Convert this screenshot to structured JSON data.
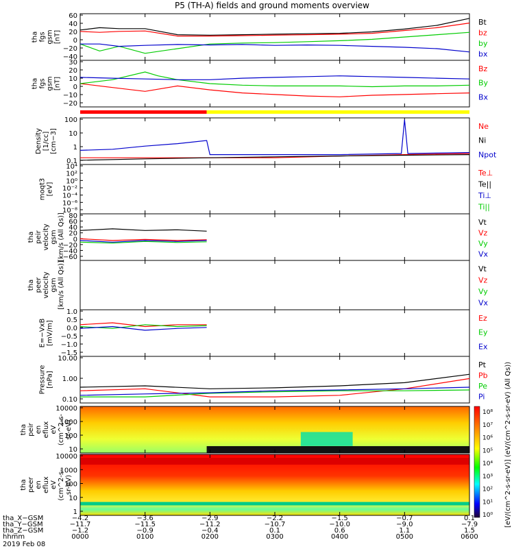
{
  "title": "P5 (TH-A) fields and ground moments overview",
  "chart_data": [
    {
      "type": "line",
      "ylabel": [
        "tha",
        "fgs",
        "gsm",
        "[nT]"
      ],
      "yticks": [
        "60",
        "40",
        "20",
        "0",
        "−20",
        "−40"
      ],
      "ylim": [
        -40,
        60
      ],
      "legend": [
        "Bt",
        "bz",
        "by",
        "bx"
      ],
      "series": [
        {
          "name": "Bt",
          "color": "#000000",
          "x": [
            0,
            0.3,
            0.6,
            1.0,
            1.5,
            2.0,
            2.5,
            3.0,
            3.5,
            4.0,
            4.5,
            5.0,
            5.5,
            6.0
          ],
          "y": [
            25,
            30,
            28,
            28,
            15,
            14,
            15,
            16,
            17,
            18,
            21,
            27,
            35,
            50
          ]
        },
        {
          "name": "bz",
          "color": "#ff0000",
          "x": [
            0,
            0.3,
            0.6,
            1.0,
            1.5,
            2.0,
            2.5,
            3.0,
            3.5,
            4.0,
            4.5,
            5.0,
            5.5,
            6.0
          ],
          "y": [
            22,
            20,
            22,
            23,
            12,
            12,
            13,
            14,
            15,
            16,
            18,
            24,
            30,
            40
          ]
        },
        {
          "name": "by",
          "color": "#00cc00",
          "x": [
            0,
            0.3,
            0.6,
            1.0,
            1.5,
            2.0,
            2.5,
            3.0,
            3.5,
            4.0,
            4.5,
            5.0,
            5.5,
            6.0
          ],
          "y": [
            -5,
            -20,
            -10,
            -25,
            -15,
            -5,
            -3,
            -2,
            0,
            2,
            5,
            10,
            15,
            20
          ]
        },
        {
          "name": "bx",
          "color": "#0000cc",
          "x": [
            0,
            0.3,
            0.6,
            1.0,
            1.5,
            2.0,
            2.5,
            3.0,
            3.5,
            4.0,
            4.5,
            5.0,
            5.5,
            6.0
          ],
          "y": [
            -5,
            -5,
            -10,
            -8,
            -6,
            -7,
            -6,
            -8,
            -7,
            -8,
            -10,
            -12,
            -15,
            -22
          ]
        }
      ]
    },
    {
      "type": "line",
      "ylabel": [
        "tha",
        "fgs",
        "gsm",
        "[nT]"
      ],
      "yticks": [
        "30",
        "20",
        "10",
        "0",
        "−10",
        "−20"
      ],
      "ylim": [
        -30,
        30
      ],
      "legend": [
        "Bz",
        "By",
        "Bx"
      ],
      "series": [
        {
          "name": "Bz",
          "color": "#ff0000",
          "x": [
            0,
            0.5,
            1.0,
            1.5,
            2.0,
            2.5,
            3.0,
            3.5,
            4.0,
            4.5,
            5.0,
            5.5,
            6.0
          ],
          "y": [
            0,
            -5,
            -10,
            -3,
            -8,
            -12,
            -14,
            -16,
            -17,
            -15,
            -14,
            -13,
            -12
          ]
        },
        {
          "name": "By",
          "color": "#00cc00",
          "x": [
            0,
            0.5,
            1.0,
            1.2,
            1.5,
            2.0,
            2.5,
            3.0,
            3.5,
            4.0,
            4.5,
            5.0,
            5.5,
            6.0
          ],
          "y": [
            0,
            5,
            15,
            10,
            5,
            0,
            -2,
            -3,
            -3,
            -3,
            -4,
            -3,
            -3,
            -2
          ]
        },
        {
          "name": "Bx",
          "color": "#0000cc",
          "x": [
            0,
            0.5,
            1.0,
            1.5,
            2.0,
            2.5,
            3.0,
            3.5,
            4.0,
            4.5,
            5.0,
            5.5,
            6.0
          ],
          "y": [
            8,
            7,
            6,
            5,
            5,
            7,
            8,
            9,
            10,
            9,
            8,
            7,
            6
          ]
        }
      ],
      "status_bar": [
        {
          "from": 0,
          "to": 1.95,
          "color": "#ff0000"
        },
        {
          "from": 1.95,
          "to": 6.0,
          "color": "#ffff00"
        }
      ]
    },
    {
      "type": "line",
      "ylabel": [
        "Density",
        "[1/cc]",
        "[cm−3]"
      ],
      "yticks": [
        "100",
        "10",
        "1",
        "0.1"
      ],
      "yscale": "log",
      "ylim": [
        0.1,
        200
      ],
      "legend": [
        "Ne",
        "Ni",
        "Npot"
      ],
      "series": [
        {
          "name": "Ne",
          "color": "#ff0000",
          "x": [
            0,
            1,
            2,
            3,
            4,
            5,
            6
          ],
          "y": [
            0.3,
            0.3,
            0.3,
            0.3,
            0.4,
            0.5,
            0.6
          ]
        },
        {
          "name": "Ni",
          "color": "#000000",
          "x": [
            0,
            1,
            2,
            3,
            4,
            5,
            6
          ],
          "y": [
            0.2,
            0.25,
            0.3,
            0.35,
            0.4,
            0.45,
            0.5
          ]
        },
        {
          "name": "Npot",
          "color": "#0000cc",
          "x": [
            0,
            0.5,
            1.0,
            1.5,
            1.95,
            2.0,
            3.0,
            4.0,
            4.95,
            5.0,
            5.05,
            6.0
          ],
          "y": [
            1,
            1.2,
            2,
            3,
            5,
            0.5,
            0.5,
            0.5,
            0.6,
            150,
            0.6,
            0.7
          ]
        }
      ]
    },
    {
      "type": "line",
      "ylabel": [
        "moqt3",
        "[eV]"
      ],
      "yticks": [
        "10⁴",
        "10²",
        "10⁰",
        "10⁻²",
        "10⁻⁴",
        "10⁻⁶",
        "10⁻⁸"
      ],
      "yscale": "log",
      "legend": [
        "Te⊥",
        "Te||",
        "Ti⊥",
        "Ti||"
      ],
      "series": []
    },
    {
      "type": "line",
      "ylabel": [
        "tha",
        "peir",
        "velocity",
        "gsm",
        "[km/s (All Qs)]"
      ],
      "yticks": [
        "80",
        "60",
        "40",
        "20",
        "0",
        "−20",
        "−40",
        "−60"
      ],
      "ylim": [
        -60,
        80
      ],
      "legend": [
        "Vt",
        "Vz",
        "Vy",
        "Vx"
      ],
      "series": [
        {
          "name": "Vt",
          "color": "#000000",
          "x": [
            0,
            0.5,
            1.0,
            1.5,
            1.95
          ],
          "y": [
            30,
            35,
            30,
            32,
            28
          ]
        },
        {
          "name": "Vz",
          "color": "#ff0000",
          "x": [
            0,
            0.5,
            1.0,
            1.5,
            1.95
          ],
          "y": [
            5,
            0,
            3,
            0,
            2
          ]
        },
        {
          "name": "Vy",
          "color": "#00cc00",
          "x": [
            0,
            0.5,
            1.0,
            1.5,
            1.95
          ],
          "y": [
            -5,
            -8,
            -3,
            -6,
            -4
          ]
        },
        {
          "name": "Vx",
          "color": "#0000cc",
          "x": [
            0,
            0.5,
            1.0,
            1.5,
            1.95
          ],
          "y": [
            0,
            -5,
            0,
            -3,
            0
          ]
        }
      ]
    },
    {
      "type": "line",
      "ylabel": [
        "tha",
        "peer",
        "velocity",
        "gsm",
        "[km/s (All Qs)]"
      ],
      "yticks": [],
      "legend": [
        "Vt",
        "Vz",
        "Vy",
        "Vx"
      ],
      "series": []
    },
    {
      "type": "line",
      "ylabel": [
        "E=−VxB",
        "[mV/m]"
      ],
      "yticks": [
        "1.0",
        "0.5",
        "0.0",
        "−0.5",
        "−1.0",
        "−1.5"
      ],
      "ylim": [
        -1.5,
        1.0
      ],
      "legend": [
        "Ez",
        "Ey",
        "Ex"
      ],
      "series": [
        {
          "name": "Ez",
          "color": "#ff0000",
          "x": [
            0,
            0.5,
            1.0,
            1.5,
            1.95
          ],
          "y": [
            0.2,
            0.3,
            0.1,
            0.2,
            0.2
          ]
        },
        {
          "name": "Ey",
          "color": "#00cc00",
          "x": [
            0,
            0.5,
            1.0,
            1.5,
            1.95
          ],
          "y": [
            0.1,
            0.0,
            0.2,
            0.1,
            0.15
          ]
        },
        {
          "name": "Ex",
          "color": "#0000cc",
          "x": [
            0,
            0.5,
            1.0,
            1.5,
            1.95
          ],
          "y": [
            0.0,
            0.1,
            -0.1,
            0.0,
            0.05
          ]
        }
      ]
    },
    {
      "type": "line",
      "ylabel": [
        "Pressure",
        "[nPa]"
      ],
      "yticks": [
        "10.00",
        "1.00",
        "0.10"
      ],
      "yscale": "log",
      "ylim": [
        0.05,
        10
      ],
      "legend": [
        "Pt",
        "Pb",
        "Pe",
        "Pi"
      ],
      "series": [
        {
          "name": "Pt",
          "color": "#000000",
          "x": [
            0,
            1,
            2,
            3,
            4,
            5,
            6
          ],
          "y": [
            0.3,
            0.35,
            0.25,
            0.28,
            0.35,
            0.5,
            1.3
          ]
        },
        {
          "name": "Pb",
          "color": "#ff0000",
          "x": [
            0,
            1,
            2,
            3,
            4,
            5,
            6
          ],
          "y": [
            0.2,
            0.25,
            0.1,
            0.1,
            0.12,
            0.25,
            0.8
          ]
        },
        {
          "name": "Pe",
          "color": "#00cc00",
          "x": [
            0,
            1,
            2,
            3,
            4,
            5,
            6
          ],
          "y": [
            0.1,
            0.1,
            0.15,
            0.18,
            0.2,
            0.2,
            0.22
          ]
        },
        {
          "name": "Pi",
          "color": "#0000cc",
          "x": [
            0,
            1,
            2,
            3,
            4,
            5,
            6
          ],
          "y": [
            0.12,
            0.14,
            0.16,
            0.2,
            0.22,
            0.25,
            0.3
          ]
        }
      ]
    },
    {
      "type": "heatmap",
      "ylabel": [
        "tha",
        "peir",
        "en",
        "eflux",
        "eV",
        "(cm^2-s-",
        "sr-eV)"
      ],
      "yticks": [
        "10000",
        "1000",
        "100",
        "10"
      ],
      "yscale": "log"
    },
    {
      "type": "heatmap",
      "ylabel": [
        "tha",
        "peer",
        "en",
        "eflux",
        "eV",
        "(cm^2-s-",
        "sr-eV)"
      ],
      "yticks": [
        "10000",
        "1000",
        "100",
        "10",
        "1"
      ],
      "yscale": "log"
    }
  ],
  "colorbar": {
    "ticks": [
      "10⁸",
      "10⁷",
      "10⁶",
      "10⁵",
      "10⁴",
      "10³",
      "10²",
      "10¹",
      "10⁰"
    ],
    "label": "[eV/(cm^2-s-sr-eV)] (eV/(cm^2-s-sr-eV) (All Qs))"
  },
  "xaxis": {
    "range": [
      0,
      6
    ],
    "rows": [
      {
        "label": "tha_X−GSM",
        "values": [
          "−4.2",
          "−3.6",
          "−2.9",
          "−2.2",
          "−1.5",
          "−0.7",
          "0.1"
        ]
      },
      {
        "label": "tha_Y−GSM",
        "values": [
          "−11.7",
          "−11.5",
          "−11.2",
          "−10.7",
          "−10.0",
          "−9.0",
          "−7.9"
        ]
      },
      {
        "label": "tha_Z−GSM",
        "values": [
          "−1.2",
          "−0.9",
          "−0.4",
          "0.1",
          "0.6",
          "1.1",
          "1.5"
        ]
      },
      {
        "label": "hhmm",
        "values": [
          "0000",
          "0100",
          "0200",
          "0300",
          "0400",
          "0500",
          "0600"
        ]
      }
    ],
    "date": "2019 Feb 08"
  }
}
